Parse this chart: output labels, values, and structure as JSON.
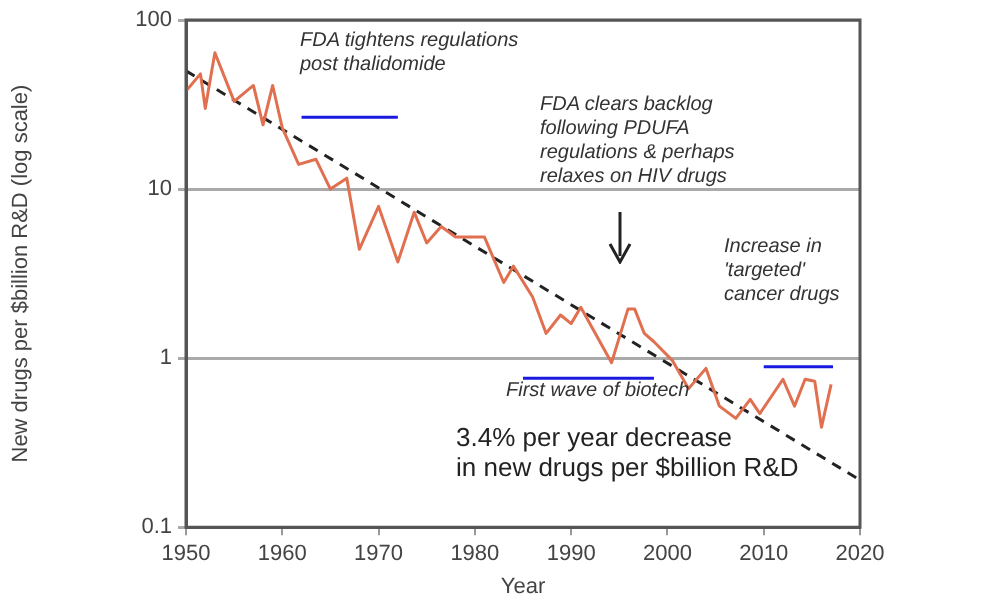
{
  "chart_data": {
    "type": "line",
    "xlabel": "Year",
    "ylabel": "New drugs per $billion R&D (log scale)",
    "log": "y",
    "grid": "y",
    "legend": false,
    "marker": "none",
    "xlim": [
      1950,
      2020
    ],
    "xticks": [
      1950,
      1960,
      1970,
      1980,
      1990,
      2000,
      2010,
      2020
    ],
    "ylim": [
      0.1,
      100
    ],
    "yticks": [
      0.1,
      1,
      10,
      100
    ],
    "series": [
      {
        "color": "#e07050",
        "line_style": "solid",
        "x": [
          1950,
          1951.5,
          1952,
          1953,
          1955,
          1957,
          1958,
          1959,
          1960,
          1961.7,
          1963.5,
          1965,
          1966.7,
          1968,
          1970,
          1972,
          1973.7,
          1975,
          1976.5,
          1978,
          1981,
          1983,
          1984,
          1986,
          1987.4,
          1988.9,
          1990,
          1991,
          1994.2,
          1995.9,
          1996.6,
          1997.6,
          1998.6,
          2000.5,
          2002.2,
          2004,
          2005.4,
          2007.1,
          2008.6,
          2009.6,
          2012,
          2013.2,
          2014.3,
          2015.3,
          2016,
          2017
        ],
        "values": [
          38,
          48,
          30,
          64,
          33,
          41,
          24,
          41,
          23,
          14,
          15,
          10,
          11.6,
          4.4,
          7.9,
          3.7,
          7.3,
          4.8,
          6,
          5.2,
          5.2,
          2.8,
          3.5,
          2.3,
          1.4,
          1.8,
          1.6,
          2,
          0.94,
          1.95,
          1.95,
          1.4,
          1.25,
          0.97,
          0.66,
          0.87,
          0.52,
          0.44,
          0.57,
          0.47,
          0.75,
          0.52,
          0.75,
          0.73,
          0.39,
          0.7
        ]
      },
      {
        "color": "#222222",
        "line_style": "dashed",
        "x": [
          1950,
          2020
        ],
        "values": [
          50,
          0.19
        ]
      },
      {
        "color": "#1a1adf",
        "line_style": "solid",
        "x": [
          1962,
          1972
        ],
        "values": [
          26.6,
          26.6
        ]
      },
      {
        "color": "#1a1adf",
        "line_style": "solid",
        "x": [
          1985,
          1998.6
        ],
        "values": [
          0.76,
          0.76
        ]
      },
      {
        "color": "#1a1adf",
        "line_style": "solid",
        "x": [
          2010,
          2017.2
        ],
        "values": [
          0.89,
          0.89
        ]
      }
    ],
    "annotations": [
      "FDA tightens regulations\npost thalidomide",
      "FDA clears backlog\nfollowing PDUFA\nregulations & perhaps\nrelaxes on HIV drugs",
      "Increase in\n'targeted'\ncancer drugs",
      "First wave of biotech",
      "3.4% per year decrease\nin new drugs per $billion R&D"
    ]
  }
}
